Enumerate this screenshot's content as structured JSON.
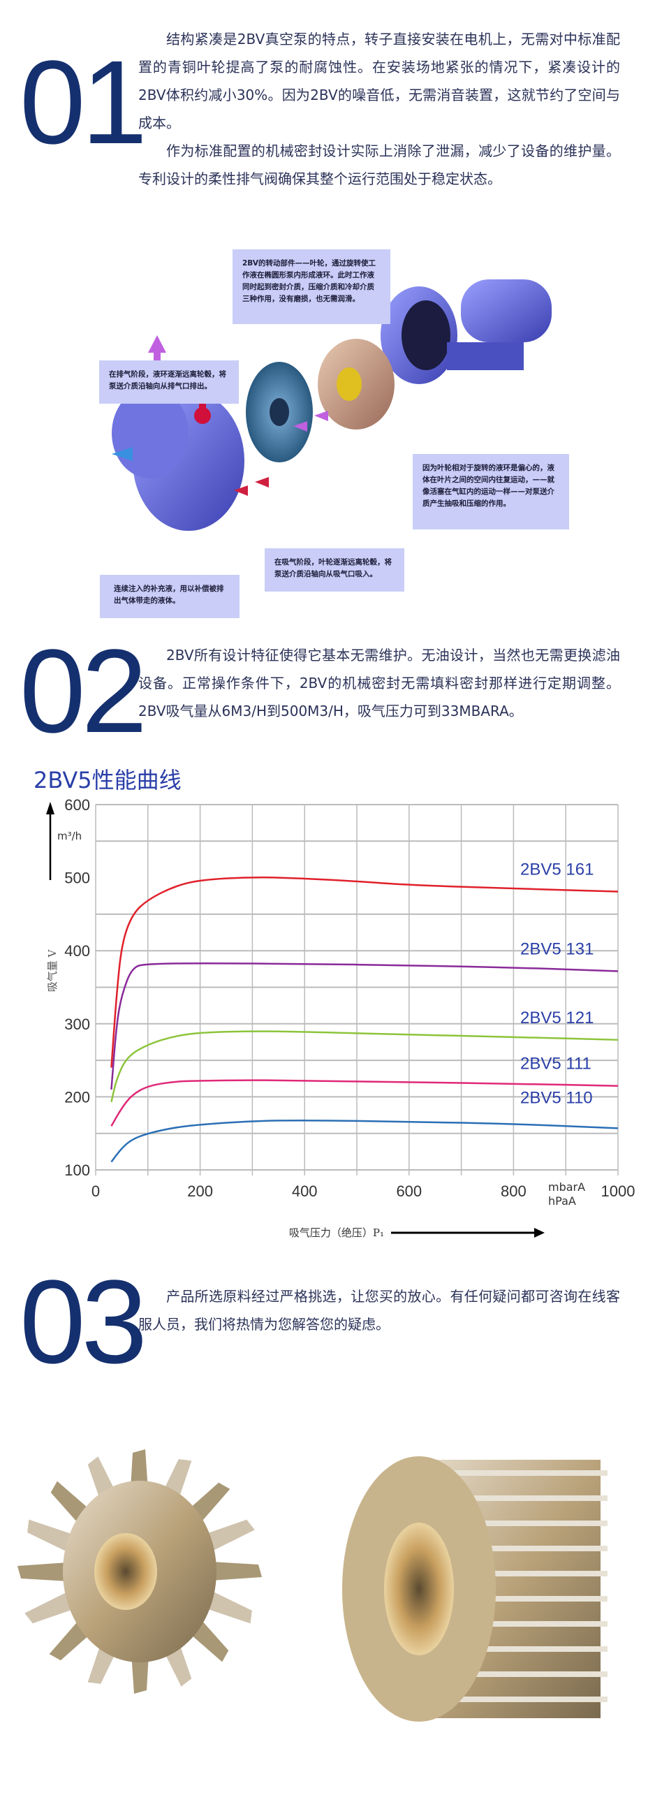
{
  "section1": {
    "number": "01",
    "paragraphs": [
      "结构紧凑是2BV真空泵的特点，转子直接安装在电机上，无需对中标准配置的青铜叶轮提高了泵的耐腐蚀性。在安装场地紧张的情况下，紧凑设计的2BV体积约减小30%。因为2BV的噪音低，无需消音装置，这就节约了空间与成本。",
      "作为标准配置的机械密封设计实际上消除了泄漏，减少了设备的维护量。专利设计的柔性排气阀确保其整个运行范围处于稳定状态。"
    ]
  },
  "diagram": {
    "callouts": {
      "impeller": "2BV的转动部件——叶轮，通过旋转使工作液在椭圆形泵内形成液环。此时工作液同时起到密封介质，压缩介质和冷却介质三种作用，没有磨损，也无需润滑。",
      "exhaust": "在排气阶段，液环逐渐远离轮毂，将泵送介质沿轴向从排气口排出。",
      "eccentric": "因为叶轮相对于旋转的液环是偏心的，液体在叶片之间的空间内往复运动，——就像活塞在气缸内的运动一样——对泵送介质产生抽吸和压缩的作用。",
      "makeup": "连续注入的补充液，用以补偿被排出气体带走的液体。",
      "suction": "在吸气阶段，叶轮逐渐远离轮毂，将泵送介质沿轴向从吸气口吸入。"
    }
  },
  "section2": {
    "number": "02",
    "paragraphs": [
      "2BV所有设计特征使得它基本无需维护。无油设计，当然也无需更换滤油设备。正常操作条件下，2BV的机械密封无需填料密封那样进行定期调整。2BV吸气量从6M3/H到500M3/H，吸气压力可到33MBARA。"
    ]
  },
  "chart_data": {
    "type": "line",
    "title": "2BV5性能曲线",
    "xlabel": "吸气压力（绝压）P₁",
    "xunit": "mbarA",
    "xunit2": "hPaA",
    "ylabel": "吸气量 V",
    "yunit": "m³/h",
    "xlim": [
      0,
      1000
    ],
    "ylim": [
      100,
      600
    ],
    "xticks": [
      0,
      200,
      400,
      600,
      800,
      1000
    ],
    "yticks": [
      100,
      200,
      300,
      400,
      500,
      600
    ],
    "grid": true,
    "series": [
      {
        "name": "2BV5 161",
        "color": "#e0202a",
        "x": [
          30,
          40,
          50,
          70,
          100,
          150,
          200,
          300,
          400,
          500,
          600,
          800,
          1000
        ],
        "y": [
          240,
          340,
          410,
          450,
          470,
          488,
          497,
          501,
          499,
          495,
          490,
          485,
          481
        ]
      },
      {
        "name": "2BV5 131",
        "color": "#8a2a9a",
        "x": [
          30,
          40,
          50,
          70,
          100,
          200,
          400,
          600,
          800,
          1000
        ],
        "y": [
          210,
          300,
          340,
          378,
          382,
          383,
          382,
          380,
          377,
          372
        ]
      },
      {
        "name": "2BV5 121",
        "color": "#8cc43a",
        "x": [
          30,
          40,
          60,
          100,
          150,
          200,
          300,
          400,
          600,
          800,
          1000
        ],
        "y": [
          193,
          225,
          255,
          272,
          283,
          288,
          290,
          289,
          285,
          282,
          278
        ]
      },
      {
        "name": "2BV5 111",
        "color": "#e02878",
        "x": [
          30,
          50,
          70,
          100,
          150,
          200,
          300,
          400,
          600,
          800,
          1000
        ],
        "y": [
          160,
          185,
          203,
          215,
          221,
          222,
          223,
          222,
          220,
          218,
          215
        ]
      },
      {
        "name": "2BV5 110",
        "color": "#2a6fb5",
        "x": [
          30,
          50,
          70,
          100,
          150,
          200,
          300,
          400,
          600,
          800,
          1000
        ],
        "y": [
          111,
          130,
          142,
          150,
          158,
          162,
          167,
          168,
          166,
          163,
          157
        ]
      }
    ]
  },
  "section3": {
    "number": "03",
    "paragraphs": [
      "产品所选原料经过严格挑选，让您买的放心。有任何疑问都可咨询在线客服人员，我们将热情为您解答您的疑虑。"
    ]
  }
}
